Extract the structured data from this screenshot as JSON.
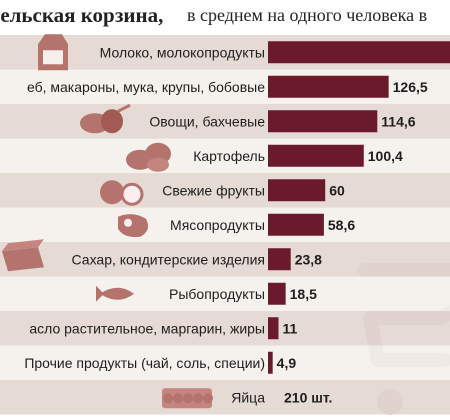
{
  "header": {
    "title_bold": "тельская корзина,",
    "title_sub": "в среднем на одного человека в"
  },
  "colors": {
    "bar": "#6b1a2c",
    "band_dark": "#e0d4cd",
    "band_light": "#f3eeea",
    "icon": "#b5736d"
  },
  "chart_data": {
    "type": "bar",
    "orientation": "horizontal",
    "title": "тельская корзина, в среднем на одного человека в",
    "categories": [
      "Молоко, молокопродукты",
      "еб, макароны, мука, крупы, бобовые",
      "Овощи, бахчевые",
      "Картофель",
      "Свежие фрукты",
      "Мясопродукты",
      "Сахар, кондитерские изделия",
      "Рыбопродукты",
      "асло растительное, маргарин, жиры",
      "Прочие продукты (чай, соль, специи)",
      "Яйца"
    ],
    "values": [
      290,
      126.5,
      114.6,
      100.4,
      60,
      58.6,
      23.8,
      18.5,
      11,
      4.9,
      210
    ],
    "value_labels": [
      "",
      "126,5",
      "114,6",
      "100,4",
      "60",
      "58,6",
      "23,8",
      "18,5",
      "11",
      "4,9",
      "210 шт."
    ],
    "bar_drawn": [
      true,
      true,
      true,
      true,
      true,
      true,
      true,
      true,
      true,
      true,
      false
    ],
    "icons": [
      "milk-carton-icon",
      "",
      "vegetables-icon",
      "potatoes-icon",
      "fruits-icon",
      "meat-icon",
      "sugar-icon",
      "fish-icon",
      "",
      "",
      "eggs-icon"
    ],
    "xlim": [
      0,
      290
    ],
    "grid": false,
    "legend": "none"
  }
}
